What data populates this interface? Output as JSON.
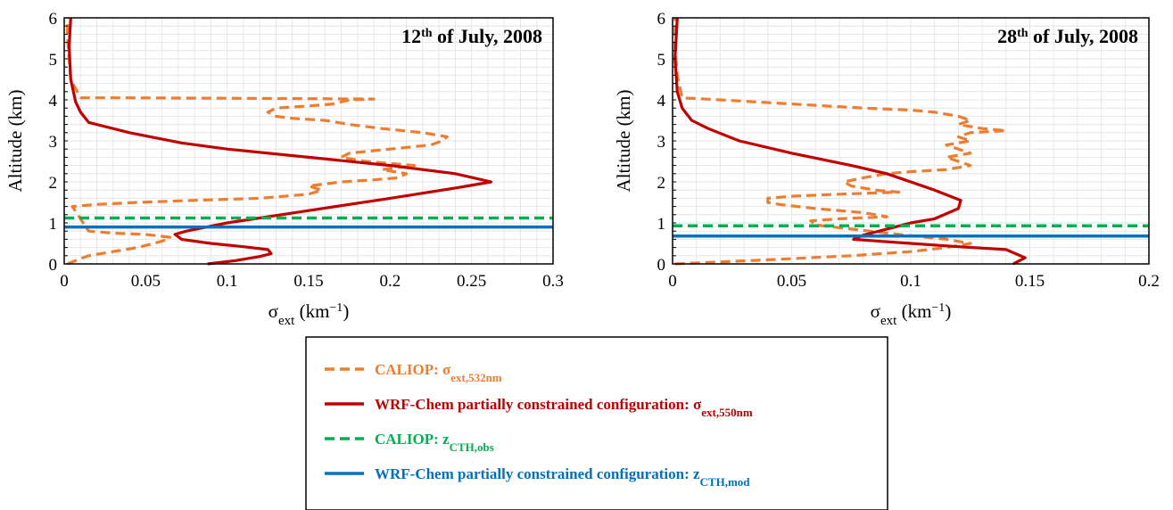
{
  "colors": {
    "caliop_ext": "#ED7D31",
    "wrf_ext": "#C00000",
    "caliop_cth": "#00B050",
    "wrf_cth": "#0070C0"
  },
  "chart_data": [
    {
      "type": "line",
      "title_main": "12",
      "title_sup": "th",
      "title_rest": " of July, 2008",
      "ylabel": "Altitude (km)",
      "xlabel_main": "σ",
      "xlabel_sub": "ext",
      "xlabel_unit": " (km",
      "xlabel_sup": "−1",
      "xlabel_close": ")",
      "xlim": [
        0,
        0.3
      ],
      "ylim": [
        0,
        6
      ],
      "xticks": [
        0,
        0.05,
        0.1,
        0.15,
        0.2,
        0.25,
        0.3
      ],
      "xtick_labels": [
        "0",
        "0.05",
        "0.1",
        "0.15",
        "0.2",
        "0.25",
        "0.3"
      ],
      "yticks": [
        0,
        1,
        2,
        3,
        4,
        5,
        6
      ],
      "ytick_labels": [
        "0",
        "1",
        "2",
        "3",
        "4",
        "5",
        "6"
      ],
      "grid": true,
      "series": [
        {
          "key": "caliop_ext",
          "style": "dashed",
          "x": [
            0.002,
            0.008,
            0.015,
            0.03,
            0.045,
            0.055,
            0.062,
            0.065,
            0.05,
            0.03,
            0.015,
            0.005,
            0.02,
            0.045,
            0.08,
            0.12,
            0.15,
            0.158,
            0.15,
            0.17,
            0.19,
            0.205,
            0.21,
            0.195,
            0.215,
            0.2,
            0.185,
            0.17,
            0.175,
            0.2,
            0.225,
            0.232,
            0.235,
            0.22,
            0.195,
            0.175,
            0.16,
            0.14,
            0.13,
            0.125,
            0.13,
            0.15,
            0.165,
            0.17,
            0.175,
            0.19,
            0.1,
            0.04,
            0.01,
            0.004,
            0.003,
            0.002,
            0.002
          ],
          "y": [
            0.0,
            0.1,
            0.2,
            0.3,
            0.4,
            0.5,
            0.58,
            0.65,
            0.72,
            0.75,
            0.8,
            1.4,
            1.45,
            1.5,
            1.55,
            1.6,
            1.7,
            1.8,
            1.9,
            2.0,
            2.05,
            2.1,
            2.2,
            2.3,
            2.4,
            2.45,
            2.5,
            2.6,
            2.7,
            2.8,
            2.9,
            3.0,
            3.1,
            3.2,
            3.3,
            3.4,
            3.5,
            3.55,
            3.6,
            3.7,
            3.8,
            3.85,
            3.9,
            3.95,
            4.0,
            4.02,
            4.04,
            4.05,
            4.05,
            4.5,
            5.0,
            5.5,
            6.0
          ]
        },
        {
          "key": "wrf_ext",
          "style": "solid",
          "x": [
            0.088,
            0.105,
            0.12,
            0.127,
            0.125,
            0.11,
            0.09,
            0.072,
            0.068,
            0.075,
            0.1,
            0.15,
            0.2,
            0.24,
            0.262,
            0.24,
            0.2,
            0.15,
            0.1,
            0.072,
            0.04,
            0.015,
            0.01,
            0.007,
            0.004,
            0.003,
            0.004
          ],
          "y": [
            0.0,
            0.08,
            0.18,
            0.25,
            0.35,
            0.42,
            0.5,
            0.6,
            0.72,
            0.8,
            1.0,
            1.3,
            1.6,
            1.85,
            2.0,
            2.2,
            2.4,
            2.6,
            2.8,
            2.95,
            3.2,
            3.45,
            3.7,
            3.95,
            4.5,
            5.3,
            6.0
          ]
        },
        {
          "key": "caliop_cth",
          "style": "dashed",
          "hline": 1.12
        },
        {
          "key": "wrf_cth",
          "style": "solid",
          "hline": 0.9
        }
      ]
    },
    {
      "type": "line",
      "title_main": "28",
      "title_sup": "th",
      "title_rest": " of July, 2008",
      "ylabel": "Altitude (km)",
      "xlabel_main": "σ",
      "xlabel_sub": "ext",
      "xlabel_unit": " (km",
      "xlabel_sup": "−1",
      "xlabel_close": ")",
      "xlim": [
        0,
        0.2
      ],
      "ylim": [
        0,
        6
      ],
      "xticks": [
        0,
        0.05,
        0.1,
        0.15,
        0.2
      ],
      "xtick_labels": [
        "0",
        "0.05",
        "0.1",
        "0.15",
        "0.2"
      ],
      "yticks": [
        0,
        1,
        2,
        3,
        4,
        5,
        6
      ],
      "ytick_labels": [
        "0",
        "1",
        "2",
        "3",
        "4",
        "5",
        "6"
      ],
      "grid": true,
      "series": [
        {
          "key": "caliop_ext",
          "style": "dashed",
          "x": [
            0.001,
            0.04,
            0.075,
            0.1,
            0.115,
            0.125,
            0.115,
            0.09,
            0.075,
            0.06,
            0.058,
            0.07,
            0.09,
            0.08,
            0.06,
            0.045,
            0.04,
            0.04,
            0.05,
            0.07,
            0.095,
            0.085,
            0.075,
            0.072,
            0.08,
            0.09,
            0.1,
            0.115,
            0.125,
            0.12,
            0.115,
            0.125,
            0.12,
            0.115,
            0.125,
            0.12,
            0.125,
            0.14,
            0.13,
            0.12,
            0.125,
            0.12,
            0.11,
            0.1,
            0.08,
            0.05,
            0.02,
            0.004,
            0.002,
            0.001,
            0.001
          ],
          "y": [
            0.0,
            0.1,
            0.2,
            0.3,
            0.4,
            0.5,
            0.6,
            0.75,
            0.85,
            0.95,
            1.05,
            1.1,
            1.15,
            1.25,
            1.35,
            1.45,
            1.5,
            1.6,
            1.65,
            1.7,
            1.75,
            1.8,
            1.9,
            2.0,
            2.1,
            2.2,
            2.25,
            2.3,
            2.4,
            2.5,
            2.6,
            2.7,
            2.8,
            2.9,
            3.0,
            3.1,
            3.2,
            3.25,
            3.3,
            3.4,
            3.5,
            3.6,
            3.7,
            3.75,
            3.8,
            3.9,
            4.0,
            4.05,
            4.6,
            5.3,
            6.0
          ]
        },
        {
          "key": "wrf_ext",
          "style": "solid",
          "x": [
            0.143,
            0.148,
            0.14,
            0.12,
            0.1,
            0.085,
            0.076,
            0.08,
            0.09,
            0.1,
            0.11,
            0.12,
            0.121,
            0.11,
            0.1,
            0.09,
            0.075,
            0.05,
            0.028,
            0.015,
            0.008,
            0.004,
            0.002,
            0.001,
            0.002
          ],
          "y": [
            0.0,
            0.15,
            0.35,
            0.42,
            0.5,
            0.56,
            0.6,
            0.7,
            0.85,
            1.0,
            1.1,
            1.35,
            1.55,
            1.8,
            2.0,
            2.2,
            2.4,
            2.7,
            3.0,
            3.3,
            3.5,
            3.8,
            4.2,
            5.0,
            6.0
          ]
        },
        {
          "key": "caliop_cth",
          "style": "dashed",
          "hline": 0.93
        },
        {
          "key": "wrf_cth",
          "style": "solid",
          "hline": 0.68
        }
      ]
    }
  ],
  "legend": {
    "items": [
      {
        "key": "caliop_ext",
        "style": "dashed",
        "label": "CALIOP: σ",
        "sub": "ext,532nm"
      },
      {
        "key": "wrf_ext",
        "style": "solid",
        "label": "WRF-Chem partially constrained configuration: σ",
        "sub": "ext,550nm"
      },
      {
        "key": "caliop_cth",
        "style": "dashed",
        "label": "CALIOP: z",
        "sub": "CTH,obs"
      },
      {
        "key": "wrf_cth",
        "style": "solid",
        "label": "WRF-Chem partially constrained configuration: z",
        "sub": "CTH,mod"
      }
    ]
  }
}
